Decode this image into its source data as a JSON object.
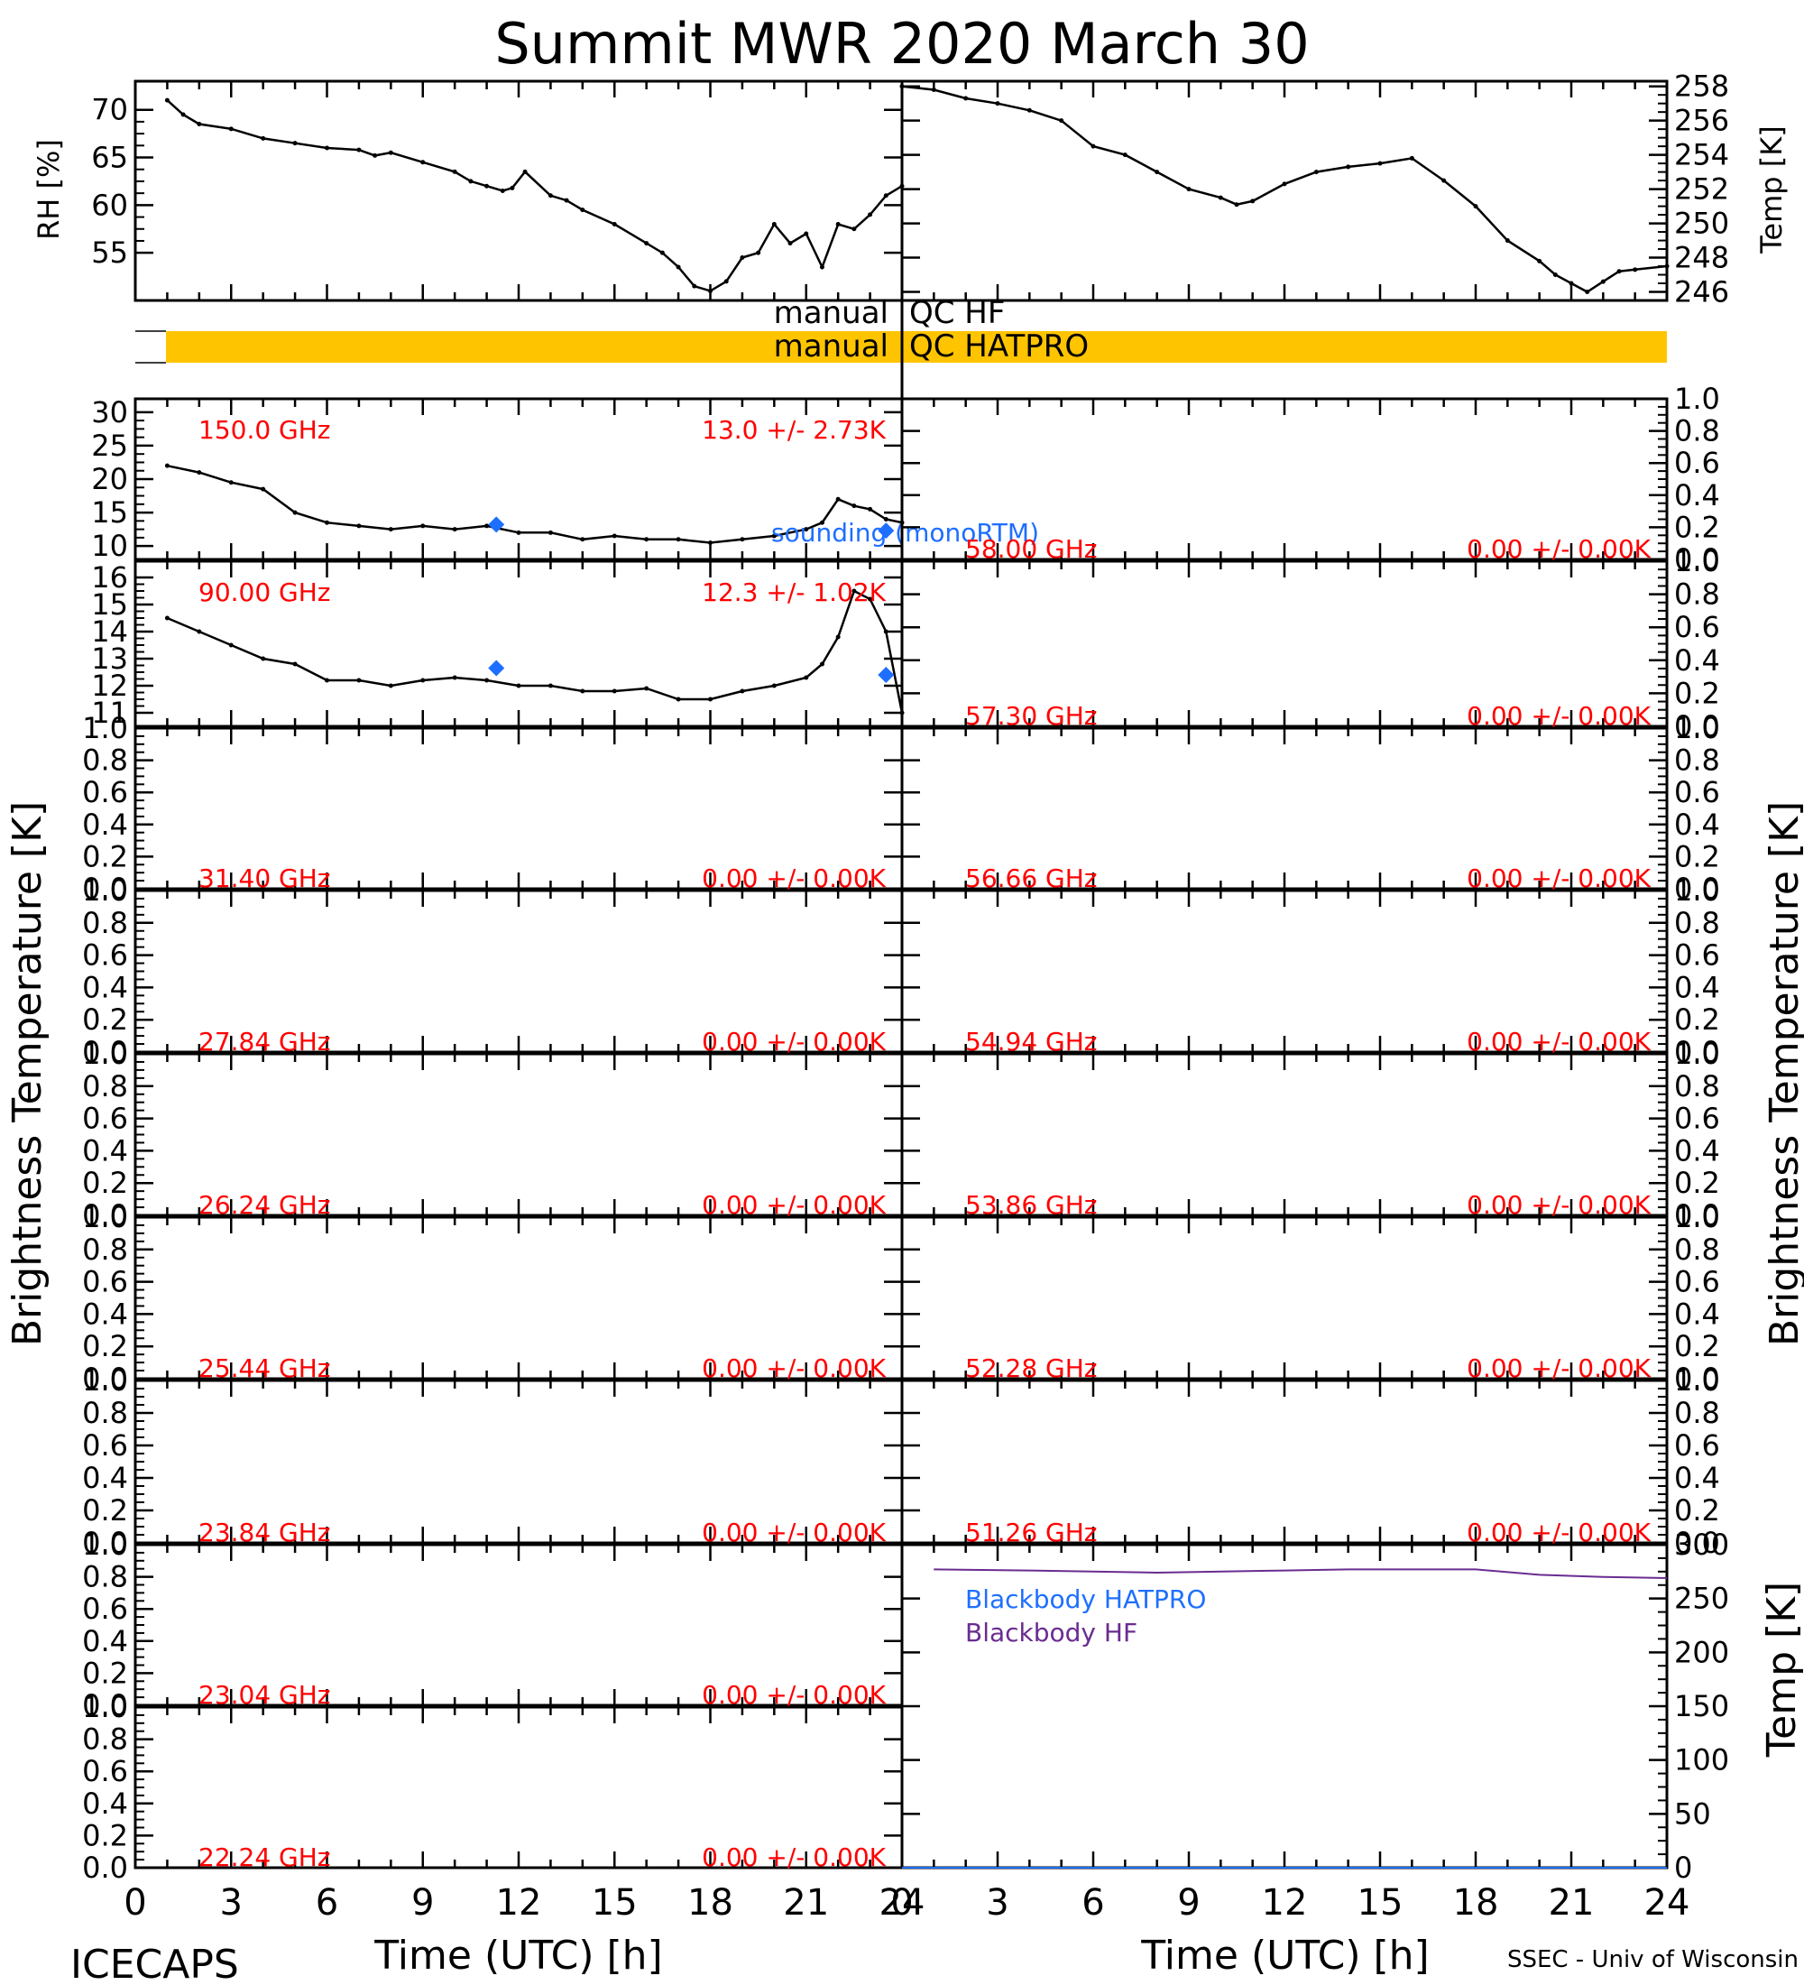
{
  "title": "Summit MWR 2020 March 30",
  "footer": {
    "left": "ICECAPS",
    "right": "SSEC - Univ of Wisconsin",
    "xlabel": "Time (UTC) [h]"
  },
  "colors": {
    "trace": "#000000",
    "label_red": "#ff0000",
    "sounding_blue": "#1e6fff",
    "qc_flag": "#ffc400",
    "blackbody_hatpro": "#1e6fff",
    "blackbody_hf": "#6a2c91"
  },
  "side_labels": {
    "bt_left": "Brightness Temperature [K]",
    "bt_right": "Brightness Temperature [K]",
    "rh": "RH [%]",
    "temp": "Temp [K]",
    "bb_temp": "Temp [K]"
  },
  "qc": {
    "hf_left": "manual",
    "hf_right": "QC HF",
    "hatpro_left": "manual",
    "hatpro_right": "QC HATPRO",
    "hatpro_flag_hours": [
      1,
      24
    ]
  },
  "chart_data": [
    {
      "id": "rh",
      "type": "line",
      "ylabel": "RH [%]",
      "xlim": [
        0,
        24
      ],
      "ylim": [
        50,
        73
      ],
      "yticks": [
        55,
        60,
        65,
        70
      ],
      "series": [
        {
          "x": [
            1,
            1.5,
            2,
            3,
            4,
            5,
            6,
            7,
            7.5,
            8,
            9,
            10,
            10.5,
            11,
            11.5,
            11.8,
            12.2,
            13,
            13.5,
            14,
            15,
            16,
            16.5,
            17,
            17.5,
            18,
            18.5,
            19,
            19.5,
            20,
            20.5,
            21,
            21.5,
            22,
            22.5,
            23,
            23.5,
            24
          ],
          "y": [
            71,
            69.5,
            68.5,
            68,
            67,
            66.5,
            66,
            65.8,
            65.2,
            65.5,
            64.5,
            63.5,
            62.5,
            62,
            61.5,
            61.8,
            63.5,
            61,
            60.5,
            59.5,
            58,
            56,
            55,
            53.5,
            51.5,
            51,
            52,
            54.5,
            55,
            58,
            56,
            57,
            53.5,
            58,
            57.5,
            59,
            61,
            62
          ]
        }
      ]
    },
    {
      "id": "temp",
      "type": "line",
      "ylabel": "Temp [K]",
      "xlim": [
        0,
        24
      ],
      "ylim": [
        245.5,
        258.3
      ],
      "yticks": [
        246,
        248,
        250,
        252,
        254,
        256,
        258
      ],
      "series": [
        {
          "x": [
            0,
            1,
            2,
            3,
            4,
            5,
            6,
            7,
            8,
            9,
            10,
            10.5,
            11,
            12,
            13,
            14,
            15,
            16,
            17,
            18,
            19,
            20,
            20.5,
            21,
            21.5,
            22,
            22.5,
            23,
            24
          ],
          "y": [
            258,
            257.8,
            257.3,
            257,
            256.6,
            256,
            254.5,
            254,
            253,
            252,
            251.5,
            251.1,
            251.3,
            252.3,
            253,
            253.3,
            253.5,
            253.8,
            252.5,
            251,
            249,
            247.8,
            247,
            246.5,
            246,
            246.6,
            247.2,
            247.3,
            247.5
          ]
        }
      ]
    },
    {
      "id": "ch150",
      "type": "line",
      "freq_label": "150.0 GHz",
      "stat_label": "13.0 +/-  2.73K",
      "xlim": [
        0,
        24
      ],
      "ylim": [
        8,
        32
      ],
      "yticks": [
        10,
        15,
        20,
        25,
        30
      ],
      "series": [
        {
          "x": [
            1,
            2,
            3,
            4,
            5,
            6,
            7,
            8,
            9,
            10,
            11,
            12,
            13,
            14,
            15,
            16,
            17,
            18,
            19,
            20,
            21,
            21.5,
            22,
            22.5,
            23,
            23.5,
            24
          ],
          "y": [
            22,
            21,
            19.5,
            18.5,
            15,
            13.5,
            13,
            12.5,
            13,
            12.5,
            13,
            12,
            12,
            11,
            11.5,
            11,
            11,
            10.5,
            11,
            11.5,
            12.5,
            13.5,
            17,
            16,
            15.5,
            14,
            13.5
          ]
        }
      ],
      "sounding": [
        {
          "x": 11.3,
          "y": 13.2
        },
        {
          "x": 23.5,
          "y": 12.3
        }
      ],
      "sounding_label": "sounding (monoRTM)"
    },
    {
      "id": "ch90",
      "type": "line",
      "freq_label": "90.00 GHz",
      "stat_label": "12.3 +/-  1.02K",
      "xlim": [
        0,
        24
      ],
      "ylim": [
        10.5,
        16.6
      ],
      "yticks": [
        11,
        12,
        13,
        14,
        15,
        16
      ],
      "series": [
        {
          "x": [
            1,
            2,
            3,
            4,
            5,
            6,
            7,
            8,
            9,
            10,
            11,
            12,
            13,
            14,
            15,
            16,
            17,
            18,
            19,
            20,
            21,
            21.5,
            22,
            22.5,
            23,
            23.5,
            24
          ],
          "y": [
            14.5,
            14,
            13.5,
            13,
            12.8,
            12.2,
            12.2,
            12,
            12.2,
            12.3,
            12.2,
            12,
            12,
            11.8,
            11.8,
            11.9,
            11.5,
            11.5,
            11.8,
            12,
            12.3,
            12.8,
            13.8,
            15.5,
            15.2,
            14,
            11
          ]
        }
      ],
      "sounding": [
        {
          "x": 11.3,
          "y": 12.65
        },
        {
          "x": 23.5,
          "y": 12.4
        }
      ]
    },
    {
      "id": "ch58",
      "type": "line",
      "freq_label": "58.00 GHz",
      "stat_label": "0.00 +/-  0.00K",
      "ylim": [
        0,
        1
      ],
      "yticks": [
        0.0,
        0.2,
        0.4,
        0.6,
        0.8,
        1.0
      ],
      "series": []
    },
    {
      "id": "ch5730",
      "type": "line",
      "freq_label": "57.30 GHz",
      "stat_label": "0.00 +/-  0.00K",
      "ylim": [
        0,
        1
      ],
      "yticks": [
        0.0,
        0.2,
        0.4,
        0.6,
        0.8,
        1.0
      ],
      "series": []
    },
    {
      "id": "ch3140",
      "type": "line",
      "freq_label": "31.40 GHz",
      "stat_label": "0.00 +/-  0.00K",
      "ylim": [
        0,
        1
      ],
      "yticks": [
        0.0,
        0.2,
        0.4,
        0.6,
        0.8,
        1.0
      ],
      "series": []
    },
    {
      "id": "ch5666",
      "type": "line",
      "freq_label": "56.66 GHz",
      "stat_label": "0.00 +/-  0.00K",
      "ylim": [
        0,
        1
      ],
      "yticks": [
        0.0,
        0.2,
        0.4,
        0.6,
        0.8,
        1.0
      ],
      "series": []
    },
    {
      "id": "ch2784",
      "type": "line",
      "freq_label": "27.84 GHz",
      "stat_label": "0.00 +/-  0.00K",
      "ylim": [
        0,
        1
      ],
      "yticks": [
        0.0,
        0.2,
        0.4,
        0.6,
        0.8,
        1.0
      ],
      "series": []
    },
    {
      "id": "ch5494",
      "type": "line",
      "freq_label": "54.94 GHz",
      "stat_label": "0.00 +/-  0.00K",
      "ylim": [
        0,
        1
      ],
      "yticks": [
        0.0,
        0.2,
        0.4,
        0.6,
        0.8,
        1.0
      ],
      "series": []
    },
    {
      "id": "ch2624",
      "type": "line",
      "freq_label": "26.24 GHz",
      "stat_label": "0.00 +/-  0.00K",
      "ylim": [
        0,
        1
      ],
      "yticks": [
        0.0,
        0.2,
        0.4,
        0.6,
        0.8,
        1.0
      ],
      "series": []
    },
    {
      "id": "ch5386",
      "type": "line",
      "freq_label": "53.86 GHz",
      "stat_label": "0.00 +/-  0.00K",
      "ylim": [
        0,
        1
      ],
      "yticks": [
        0.0,
        0.2,
        0.4,
        0.6,
        0.8,
        1.0
      ],
      "series": []
    },
    {
      "id": "ch2544",
      "type": "line",
      "freq_label": "25.44 GHz",
      "stat_label": "0.00 +/-  0.00K",
      "ylim": [
        0,
        1
      ],
      "yticks": [
        0.0,
        0.2,
        0.4,
        0.6,
        0.8,
        1.0
      ],
      "series": []
    },
    {
      "id": "ch5228",
      "type": "line",
      "freq_label": "52.28 GHz",
      "stat_label": "0.00 +/-  0.00K",
      "ylim": [
        0,
        1
      ],
      "yticks": [
        0.0,
        0.2,
        0.4,
        0.6,
        0.8,
        1.0
      ],
      "series": []
    },
    {
      "id": "ch2384",
      "type": "line",
      "freq_label": "23.84 GHz",
      "stat_label": "0.00 +/-  0.00K",
      "ylim": [
        0,
        1
      ],
      "yticks": [
        0.0,
        0.2,
        0.4,
        0.6,
        0.8,
        1.0
      ],
      "series": []
    },
    {
      "id": "ch5126",
      "type": "line",
      "freq_label": "51.26 GHz",
      "stat_label": "0.00 +/-  0.00K",
      "ylim": [
        0,
        1
      ],
      "yticks": [
        0.0,
        0.2,
        0.4,
        0.6,
        0.8,
        1.0
      ],
      "series": []
    },
    {
      "id": "ch2304",
      "type": "line",
      "freq_label": "23.04 GHz",
      "stat_label": "0.00 +/-  0.00K",
      "ylim": [
        0,
        1
      ],
      "yticks": [
        0.0,
        0.2,
        0.4,
        0.6,
        0.8,
        1.0
      ],
      "series": []
    },
    {
      "id": "ch2224",
      "type": "line",
      "freq_label": "22.24 GHz",
      "stat_label": "0.00 +/-  0.00K",
      "ylim": [
        0,
        1
      ],
      "yticks": [
        0.0,
        0.2,
        0.4,
        0.6,
        0.8,
        1.0
      ],
      "series": []
    },
    {
      "id": "blackbody",
      "type": "line",
      "ylabel": "Temp [K]",
      "xlim": [
        0,
        24
      ],
      "ylim": [
        0,
        300
      ],
      "yticks": [
        0,
        50,
        100,
        150,
        200,
        250,
        300
      ],
      "legend": [
        "Blackbody HATPRO",
        "Blackbody HF"
      ],
      "series": [
        {
          "name": "Blackbody HF",
          "x": [
            1,
            4,
            8,
            12,
            14,
            16,
            18,
            20,
            22,
            24
          ],
          "y": [
            277,
            276,
            274,
            276,
            277,
            277,
            277,
            272,
            270,
            269
          ]
        },
        {
          "name": "Blackbody HATPRO",
          "x": [
            0,
            24
          ],
          "y": [
            0,
            0
          ]
        }
      ]
    }
  ],
  "xaxis": {
    "ticks": [
      0,
      3,
      6,
      9,
      12,
      15,
      18,
      21,
      24
    ],
    "xlim": [
      0,
      24
    ]
  }
}
